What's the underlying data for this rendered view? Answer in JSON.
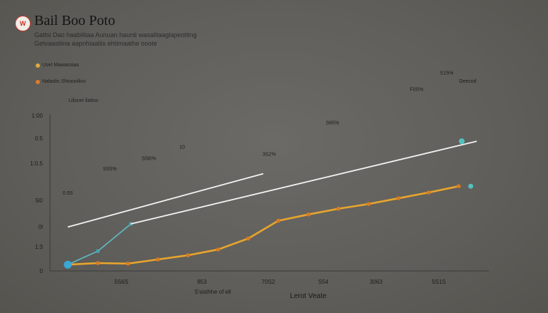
{
  "logo_text": "W",
  "title": "Bail Boo Poto",
  "subtitle_line1": "Gattsi Dao haabilitaa Aunuan haunti wasalitaaglapeotting",
  "subtitle_line2": "Getvaastiina aapnhiaaliis ehtimaathe ooote",
  "legend": [
    {
      "label": "Uset Mawassiaa",
      "color": "#e1a93a"
    },
    {
      "label": "Nalaslis Shtoooiiloo",
      "color": "#dd7c2c"
    }
  ],
  "legend_note": "Lilisnei llatloo",
  "colors": {
    "yellow": "#e8a52c",
    "teal": "#5fb3bb",
    "white": "#f2f2f2",
    "axis": "#3a3a3a",
    "marker": "#3aa7d6"
  },
  "chart_data": {
    "type": "line",
    "x": [
      0,
      1,
      2,
      3,
      4,
      5,
      6,
      7,
      8,
      9,
      10,
      11,
      12,
      13
    ],
    "series": [
      {
        "values": [
          0.6,
          0.75,
          0.7,
          1.1,
          1.5,
          2.05,
          3.1,
          4.8,
          5.4,
          5.95,
          6.4,
          6.95,
          7.5,
          8.1
        ],
        "color": "#e8a52c"
      },
      {
        "values": [
          0.6,
          1.9,
          4.5
        ],
        "x": [
          0,
          1,
          2.1
        ],
        "color": "#5fb3bb"
      },
      {
        "values": [
          4.5,
          12.4
        ],
        "x": [
          2.1,
          13.6
        ],
        "color": "#f2f2f2"
      },
      {
        "values": [
          4.2,
          9.3
        ],
        "x": [
          0,
          6.5
        ],
        "color": "#f2f2f2"
      }
    ],
    "y_ticks": [
      "0",
      "1:3",
      "0l",
      "5l0",
      "1:0.5",
      "0:5",
      "1:00"
    ],
    "x_ticks": [
      "5S6S",
      "853",
      "70S2",
      "S54",
      "3063",
      "5S1S"
    ],
    "xlabel": "Lerot Veate",
    "xlabel2": "S'sisthhe of ell",
    "ylim": [
      0,
      15
    ],
    "xlim": [
      0,
      14
    ],
    "annotations": [
      {
        "text": "S3S%",
        "x": 1.4,
        "y": 9.6
      },
      {
        "text": "S5l0%",
        "x": 2.7,
        "y": 10.6
      },
      {
        "text": "10",
        "x": 3.8,
        "y": 11.7
      },
      {
        "text": "3S2%",
        "x": 6.7,
        "y": 11.0
      },
      {
        "text": "S65%",
        "x": 8.8,
        "y": 14.0
      },
      {
        "text": "F0S%",
        "x": 11.6,
        "y": 17.2
      },
      {
        "text": "S15%",
        "x": 12.6,
        "y": 18.8
      },
      {
        "text": "Deecod",
        "x": 13.3,
        "y": 18.0
      },
      {
        "text": "0.0S",
        "x": 0,
        "y": 7.3
      }
    ]
  }
}
